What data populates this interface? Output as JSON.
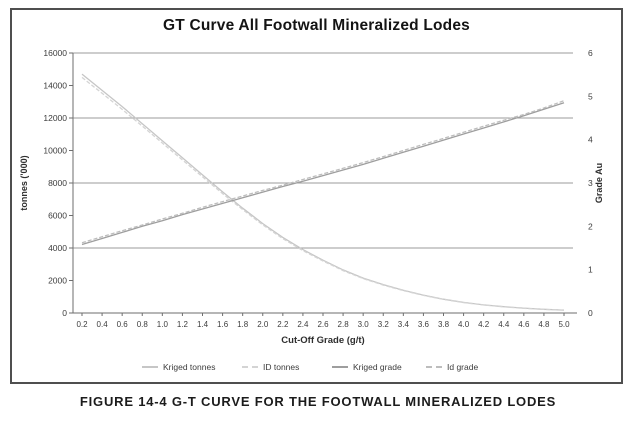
{
  "page": {
    "caption": "FIGURE 14-4 G-T CURVE FOR THE FOOTWALL MINERALIZED LODES"
  },
  "chart_data": {
    "type": "line",
    "title": "GT Curve All Footwall Mineralized Lodes",
    "xlabel": "Cut-Off Grade (g/t)",
    "ylabel_left": "tonnes ('000)",
    "ylabel_right": "Grade Au",
    "legend_position": "bottom",
    "grid": "horizontal",
    "x_tick_labels": [
      "0.2",
      "0.4",
      "0.6",
      "0.8",
      "1.0",
      "1.2",
      "1.4",
      "1.6",
      "1.8",
      "2.0",
      "2.2",
      "2.4",
      "2.6",
      "2.8",
      "3.0",
      "3.2",
      "3.4",
      "3.6",
      "3.8",
      "4.0",
      "4.2",
      "4.4",
      "4.6",
      "4.8",
      "5.0"
    ],
    "x": [
      0.2,
      0.4,
      0.6,
      0.8,
      1.0,
      1.2,
      1.4,
      1.6,
      1.8,
      2.0,
      2.2,
      2.4,
      2.6,
      2.8,
      3.0,
      3.2,
      3.4,
      3.6,
      3.8,
      4.0,
      4.2,
      4.4,
      4.6,
      4.8,
      5.0
    ],
    "y_left_ticks": [
      0,
      2000,
      4000,
      6000,
      8000,
      10000,
      12000,
      14000,
      16000
    ],
    "y_right_ticks": [
      0,
      1,
      2,
      3,
      4,
      5,
      6
    ],
    "y_left_range": [
      0,
      16000
    ],
    "y_right_range": [
      0,
      6
    ],
    "gridline_values_left": [
      4000,
      8000,
      12000,
      16000
    ],
    "axis_color": "#7a7a7a",
    "text_color": "#3c3c3c",
    "series": [
      {
        "name": "Kriged tonnes",
        "axis": "left",
        "color": "#c6c6c6",
        "dash": "none",
        "values": [
          14700,
          13700,
          12700,
          11650,
          10600,
          9550,
          8500,
          7450,
          6450,
          5500,
          4650,
          3900,
          3250,
          2650,
          2150,
          1750,
          1400,
          1100,
          850,
          650,
          500,
          390,
          300,
          230,
          180
        ]
      },
      {
        "name": "ID tonnes",
        "axis": "left",
        "color": "#d4d4d4",
        "dash": "4,2",
        "values": [
          14500,
          13520,
          12530,
          11500,
          10460,
          9420,
          8380,
          7350,
          6360,
          5420,
          4580,
          3840,
          3200,
          2610,
          2120,
          1720,
          1380,
          1080,
          840,
          640,
          490,
          380,
          290,
          220,
          170
        ]
      },
      {
        "name": "Kriged grade",
        "axis": "right",
        "color": "#9e9e9e",
        "dash": "none",
        "values": [
          1.58,
          1.72,
          1.86,
          2.0,
          2.13,
          2.27,
          2.4,
          2.53,
          2.66,
          2.79,
          2.92,
          3.04,
          3.17,
          3.3,
          3.43,
          3.57,
          3.71,
          3.85,
          3.99,
          4.13,
          4.27,
          4.41,
          4.55,
          4.7,
          4.85
        ]
      },
      {
        "name": "Id grade",
        "axis": "right",
        "color": "#bdbdbd",
        "dash": "4,2",
        "values": [
          1.62,
          1.76,
          1.9,
          2.03,
          2.17,
          2.3,
          2.44,
          2.57,
          2.7,
          2.83,
          2.95,
          3.08,
          3.21,
          3.34,
          3.47,
          3.61,
          3.75,
          3.89,
          4.03,
          4.17,
          4.31,
          4.45,
          4.58,
          4.73,
          4.9
        ]
      }
    ]
  }
}
